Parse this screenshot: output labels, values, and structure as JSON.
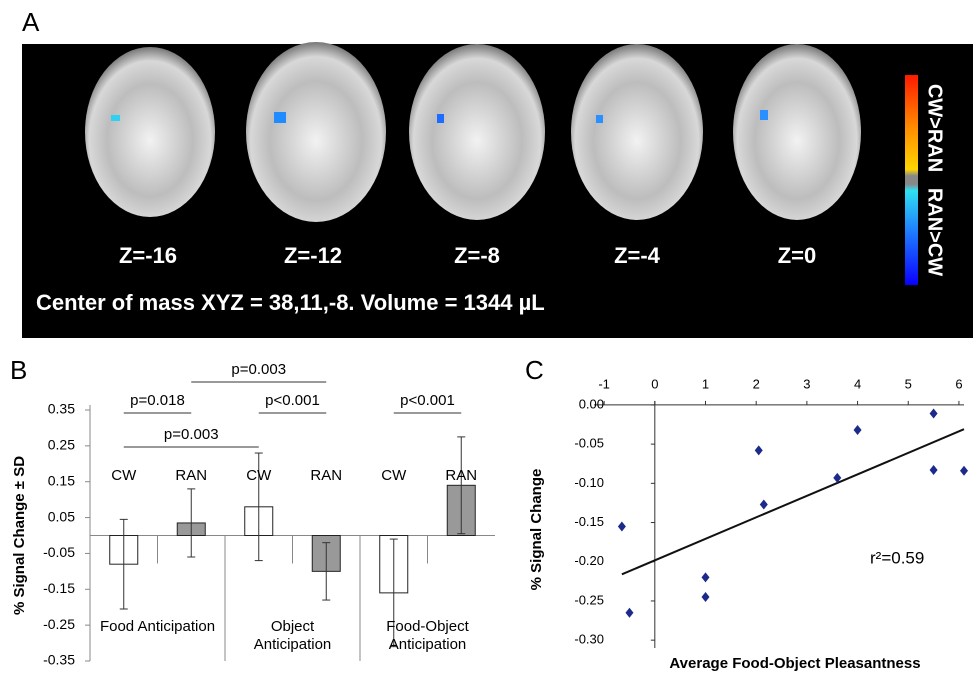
{
  "panel_a": {
    "label": "A",
    "slices": [
      "Z=-16",
      "Z=-12",
      "Z=-8",
      "Z=-4",
      "Z=0"
    ],
    "caption": "Center of mass XYZ = 38,11,-8. Volume = 1344 µL",
    "colorbar": [
      "CW>RAN",
      "RAN>CW"
    ]
  },
  "chart_data": [
    {
      "type": "bar",
      "label": "B",
      "ylabel": "% Signal Change ± SD",
      "categories": [
        "CW",
        "RAN",
        "CW",
        "RAN",
        "CW",
        "RAN"
      ],
      "groups": [
        [
          "Food Anticipation"
        ],
        [
          "Object",
          "Anticipation"
        ],
        [
          "Food-Object",
          "Anticipation"
        ]
      ],
      "values": [
        -0.08,
        0.035,
        0.08,
        -0.1,
        -0.16,
        0.14
      ],
      "errors": [
        0.125,
        0.095,
        0.15,
        0.08,
        0.15,
        0.135
      ],
      "colors": [
        "#ffffff",
        "#999999",
        "#ffffff",
        "#999999",
        "#ffffff",
        "#999999"
      ],
      "ylim": [
        -0.35,
        0.35
      ],
      "yticks": [
        0.35,
        0.25,
        0.15,
        0.05,
        -0.05,
        -0.15,
        -0.25,
        -0.35
      ],
      "annotations": [
        "p=0.003",
        "p=0.018",
        "p<0.001",
        "p<0.001",
        "p=0.003"
      ]
    },
    {
      "type": "scatter",
      "label": "C",
      "xlabel": "Average Food-Object Pleasantness",
      "ylabel": "% Signal Change",
      "x": [
        -0.65,
        -0.5,
        1.0,
        1.0,
        2.05,
        2.15,
        3.6,
        4.0,
        5.5,
        5.5,
        6.1
      ],
      "y": [
        -0.155,
        -0.265,
        -0.22,
        -0.245,
        -0.058,
        -0.127,
        -0.093,
        -0.032,
        -0.011,
        -0.083,
        -0.084
      ],
      "color": "#1c2a8c",
      "trendline": {
        "x": [
          -0.65,
          6.1
        ],
        "y": [
          -0.216,
          -0.031
        ]
      },
      "annotation": "r²=0.59",
      "xlim": [
        -1.2,
        6.1
      ],
      "xticks": [
        -1,
        0,
        1,
        2,
        3,
        4,
        5,
        6
      ],
      "ylim": [
        -0.31,
        0.005
      ],
      "yticks": [
        {
          "value": 0,
          "label": "0.00"
        },
        -0.05,
        {
          "value": -0.1,
          "label": "-0.10"
        },
        -0.15,
        {
          "value": -0.2,
          "label": "-0.20"
        },
        -0.25,
        {
          "value": -0.3,
          "label": "-0.30"
        }
      ]
    }
  ]
}
